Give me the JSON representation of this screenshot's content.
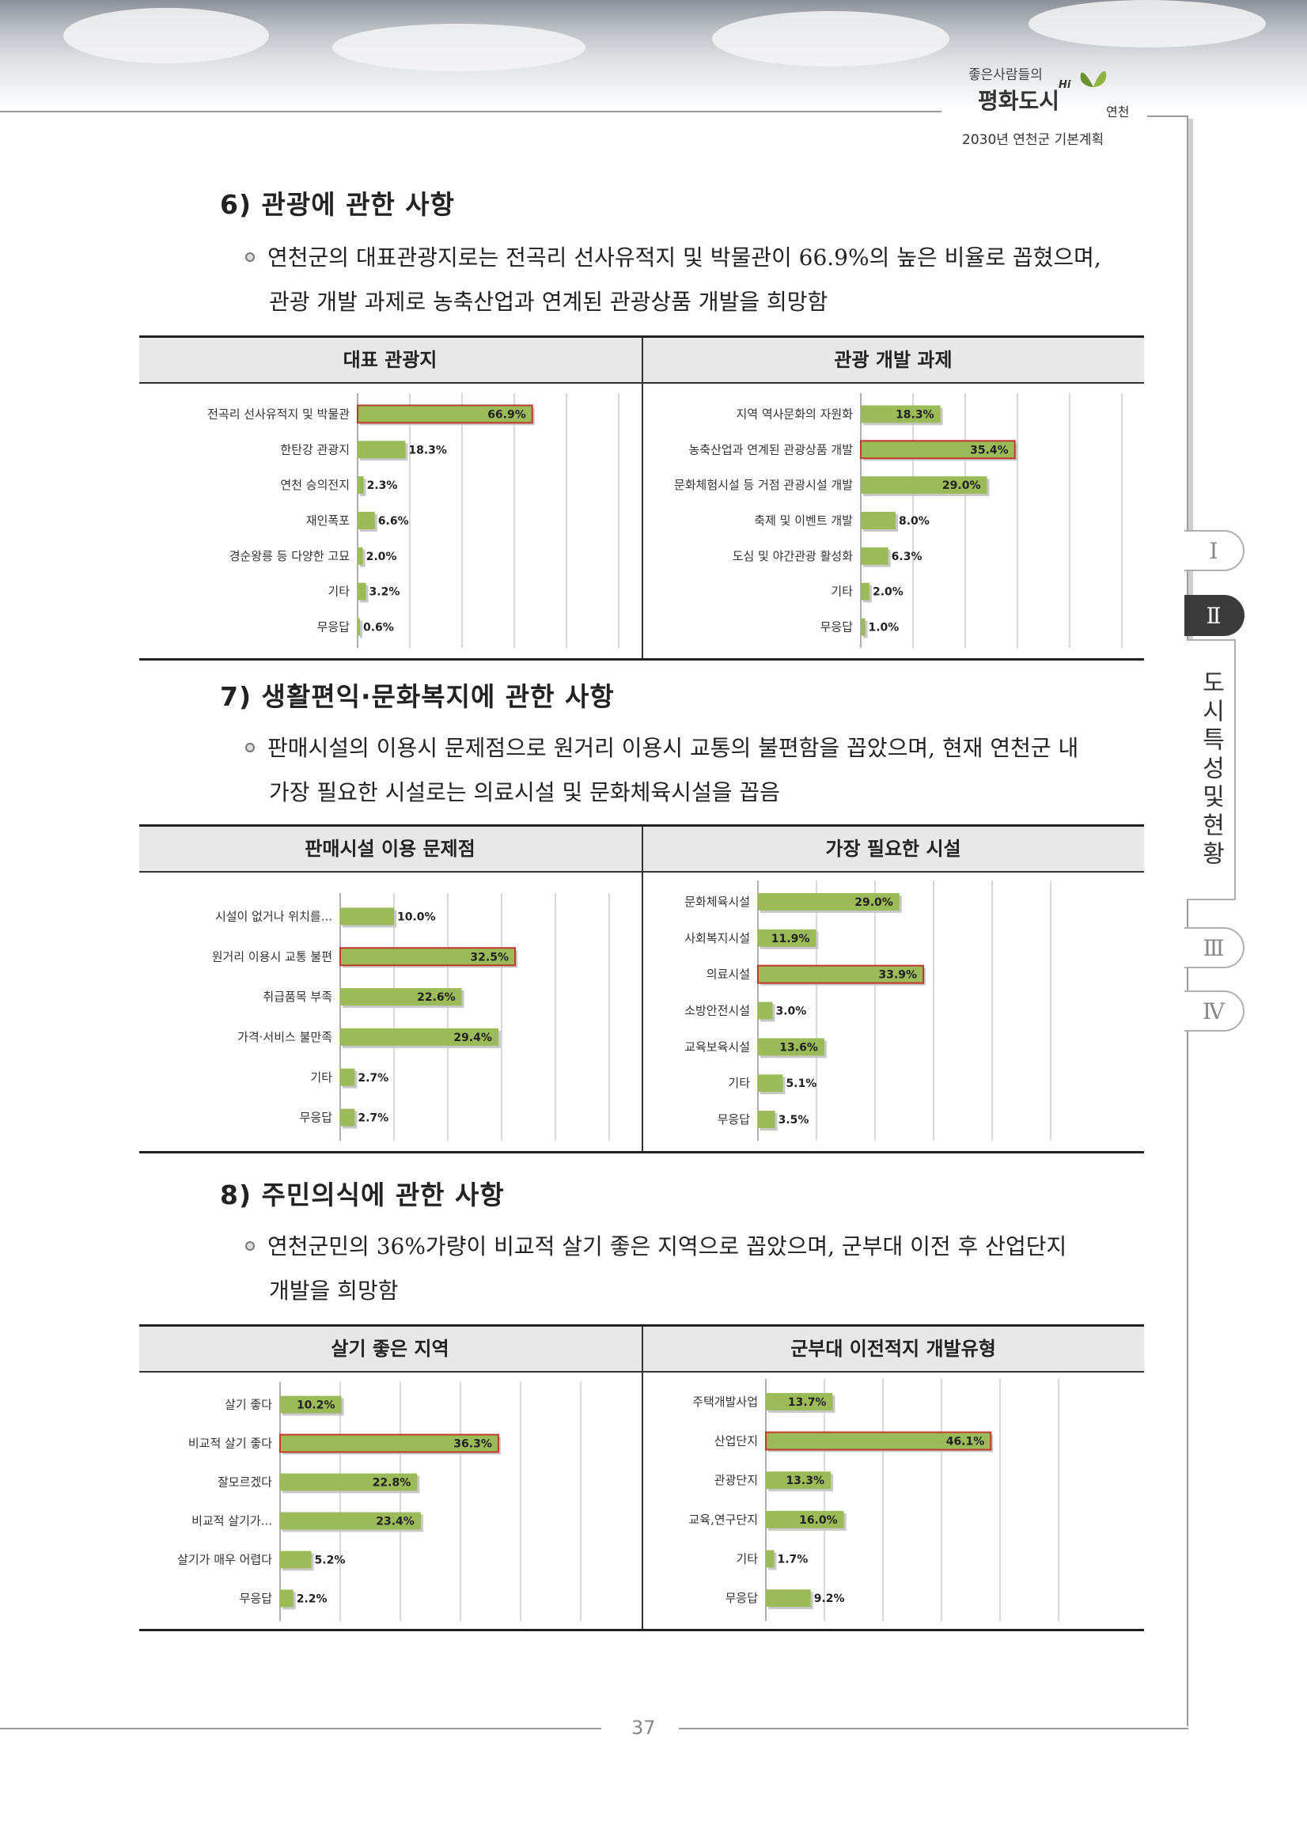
{
  "header": {
    "slogan_small": "좋은사람들의",
    "slogan_big": "평화도시",
    "hi": "Hi",
    "city": "연천",
    "plan_title": "2030년 연천군 기본계획"
  },
  "tabs": [
    {
      "label": "Ⅰ",
      "active": false
    },
    {
      "label": "Ⅱ",
      "active": true
    },
    {
      "label": "Ⅲ",
      "active": false
    },
    {
      "label": "Ⅳ",
      "active": false
    }
  ],
  "side_label": "도시특성및현황",
  "sections": [
    {
      "heading": "6) 관광에 관한 사항",
      "lines": [
        "연천군의 대표관광지로는 전곡리 선사유적지 및 박물관이 66.9%의 높은 비율로 꼽혔으며,",
        "관광 개발 과제로 농축산업과 연계된 관광상품 개발을 희망함"
      ],
      "left_title": "대표 관광지",
      "right_title": "관광 개발 과제"
    },
    {
      "heading": "7) 생활편익·문화복지에 관한 사항",
      "lines": [
        "판매시설의 이용시 문제점으로 원거리 이용시 교통의 불편함을 꼽았으며, 현재 연천군 내",
        "가장 필요한 시설로는 의료시설 및 문화체육시설을 꼽음"
      ],
      "left_title": "판매시설 이용 문제점",
      "right_title": "가장 필요한 시설"
    },
    {
      "heading": "8) 주민의식에 관한 사항",
      "lines": [
        "연천군민의 36%가량이 비교적 살기 좋은 지역으로 꼽았으며, 군부대 이전 후 산업단지",
        "개발을 희망함"
      ],
      "left_title": "살기 좋은 지역",
      "right_title": "군부대 이전적지 개발유형"
    }
  ],
  "page_number": "37",
  "colors": {
    "bar": "#9bbb59",
    "highlight_border": "#c0392b",
    "grid": "#bfbfbf"
  },
  "chart_data": [
    {
      "type": "bar",
      "orientation": "horizontal",
      "title": "대표 관광지",
      "categories": [
        "전곡리 선사유적지 및 박물관",
        "한탄강 관광지",
        "연천 승의전지",
        "재인폭포",
        "경순왕릉 등 다양한 고묘",
        "기타",
        "무응답"
      ],
      "values": [
        66.9,
        18.3,
        2.3,
        6.6,
        2.0,
        3.2,
        0.6
      ],
      "labels": [
        "66.9%",
        "18.3%",
        "2.3%",
        "6.6%",
        "2.0%",
        "3.2%",
        "0.6%"
      ],
      "highlight": [
        0
      ],
      "xlim": [
        0,
        100
      ],
      "grid": true
    },
    {
      "type": "bar",
      "orientation": "horizontal",
      "title": "관광 개발 과제",
      "categories": [
        "지역 역사문화의 자원화",
        "농축산업과 연계된 관광상품 개발",
        "문화체험시설 등 거점 관광시설 개발",
        "축제 및 이벤트 개발",
        "도심 및 야간관광 활성화",
        "기타",
        "무응답"
      ],
      "values": [
        18.3,
        35.4,
        29.0,
        8.0,
        6.3,
        2.0,
        1.0
      ],
      "labels": [
        "18.3%",
        "35.4%",
        "29.0%",
        "8.0%",
        "6.3%",
        "2.0%",
        "1.0%"
      ],
      "highlight": [
        1
      ],
      "xlim": [
        0,
        60
      ],
      "grid": true
    },
    {
      "type": "bar",
      "orientation": "horizontal",
      "title": "판매시설 이용 문제점",
      "categories": [
        "시설이 없거나 위치를...",
        "원거리 이용시 교통 불편",
        "취급품목 부족",
        "가격·서비스 불만족",
        "기타",
        "무응답"
      ],
      "values": [
        10.0,
        32.5,
        22.6,
        29.4,
        2.7,
        2.7
      ],
      "labels": [
        "10.0%",
        "32.5%",
        "22.6%",
        "29.4%",
        "2.7%",
        "2.7%"
      ],
      "highlight": [
        1
      ],
      "xlim": [
        0,
        50
      ],
      "grid": true
    },
    {
      "type": "bar",
      "orientation": "horizontal",
      "title": "가장 필요한 시설",
      "categories": [
        "문화체육시설",
        "사회복지시설",
        "의료시설",
        "소방안전시설",
        "교육보육시설",
        "기타",
        "무응답"
      ],
      "values": [
        29.0,
        11.9,
        33.9,
        3.0,
        13.6,
        5.1,
        3.5
      ],
      "labels": [
        "29.0%",
        "11.9%",
        "33.9%",
        "3.0%",
        "13.6%",
        "5.1%",
        "3.5%"
      ],
      "highlight": [
        2
      ],
      "xlim": [
        0,
        60
      ],
      "grid": true
    },
    {
      "type": "bar",
      "orientation": "horizontal",
      "title": "살기 좋은 지역",
      "categories": [
        "살기 좋다",
        "비교적 살기 좋다",
        "잘모르겠다",
        "비교적 살기가...",
        "살기가 매우 어렵다",
        "무응답"
      ],
      "values": [
        10.2,
        36.3,
        22.8,
        23.4,
        5.2,
        2.2
      ],
      "labels": [
        "10.2%",
        "36.3%",
        "22.8%",
        "23.4%",
        "5.2%",
        "2.2%"
      ],
      "highlight": [
        1
      ],
      "xlim": [
        0,
        50
      ],
      "grid": true
    },
    {
      "type": "bar",
      "orientation": "horizontal",
      "title": "군부대 이전적지 개발유형",
      "categories": [
        "주택개발사업",
        "산업단지",
        "관광단지",
        "교육,연구단지",
        "기타",
        "무응답"
      ],
      "values": [
        13.7,
        46.1,
        13.3,
        16.0,
        1.7,
        9.2
      ],
      "labels": [
        "13.7%",
        "46.1%",
        "13.3%",
        "16.0%",
        "1.7%",
        "9.2%"
      ],
      "highlight": [
        1
      ],
      "xlim": [
        0,
        60
      ],
      "grid": true
    }
  ]
}
